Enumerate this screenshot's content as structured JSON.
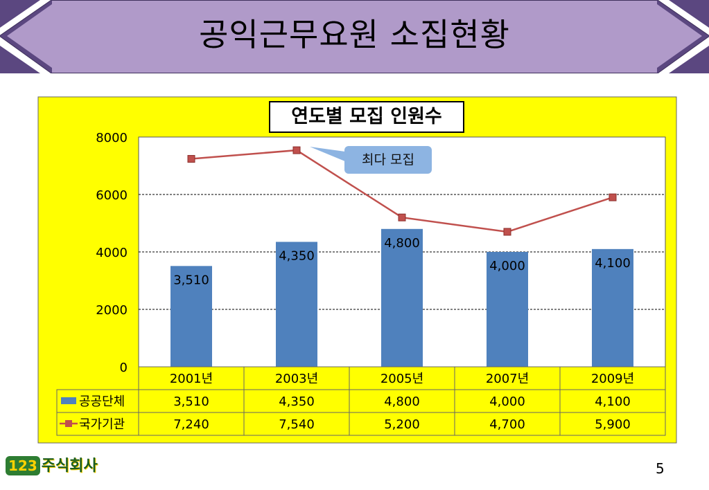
{
  "slide": {
    "title": "공익근무요원 소집현황",
    "page_number": "5",
    "logo_badge": "123",
    "logo_text": "주식회사",
    "colors": {
      "banner_fill": "#b09ac9",
      "banner_dark": "#5b4780",
      "chart_background": "#ffff00",
      "bar": "#4f81bd",
      "line": "#c0504d",
      "callout": "#8db4e2"
    }
  },
  "chart_data": {
    "type": "bar",
    "title": "연도별 모집 인원수",
    "categories": [
      "2001년",
      "2003년",
      "2005년",
      "2007년",
      "2009년"
    ],
    "series": [
      {
        "name": "공공단체",
        "type": "bar",
        "values": [
          3510,
          4350,
          4800,
          4000,
          4100
        ],
        "labels": [
          "3,510",
          "4,350",
          "4,800",
          "4,000",
          "4,100"
        ]
      },
      {
        "name": "국가기관",
        "type": "line",
        "values": [
          7240,
          7540,
          5200,
          4700,
          5900
        ],
        "labels": [
          "7,240",
          "7,540",
          "5,200",
          "4,700",
          "5,900"
        ]
      }
    ],
    "y_ticks": [
      "8000",
      "6000",
      "4000",
      "2000",
      "0"
    ],
    "ylim": [
      0,
      8000
    ],
    "grid": true,
    "legend": "data table below chart",
    "annotation": {
      "text": "최다 모집",
      "target_series": "국가기관",
      "target_category": "2003년"
    }
  }
}
